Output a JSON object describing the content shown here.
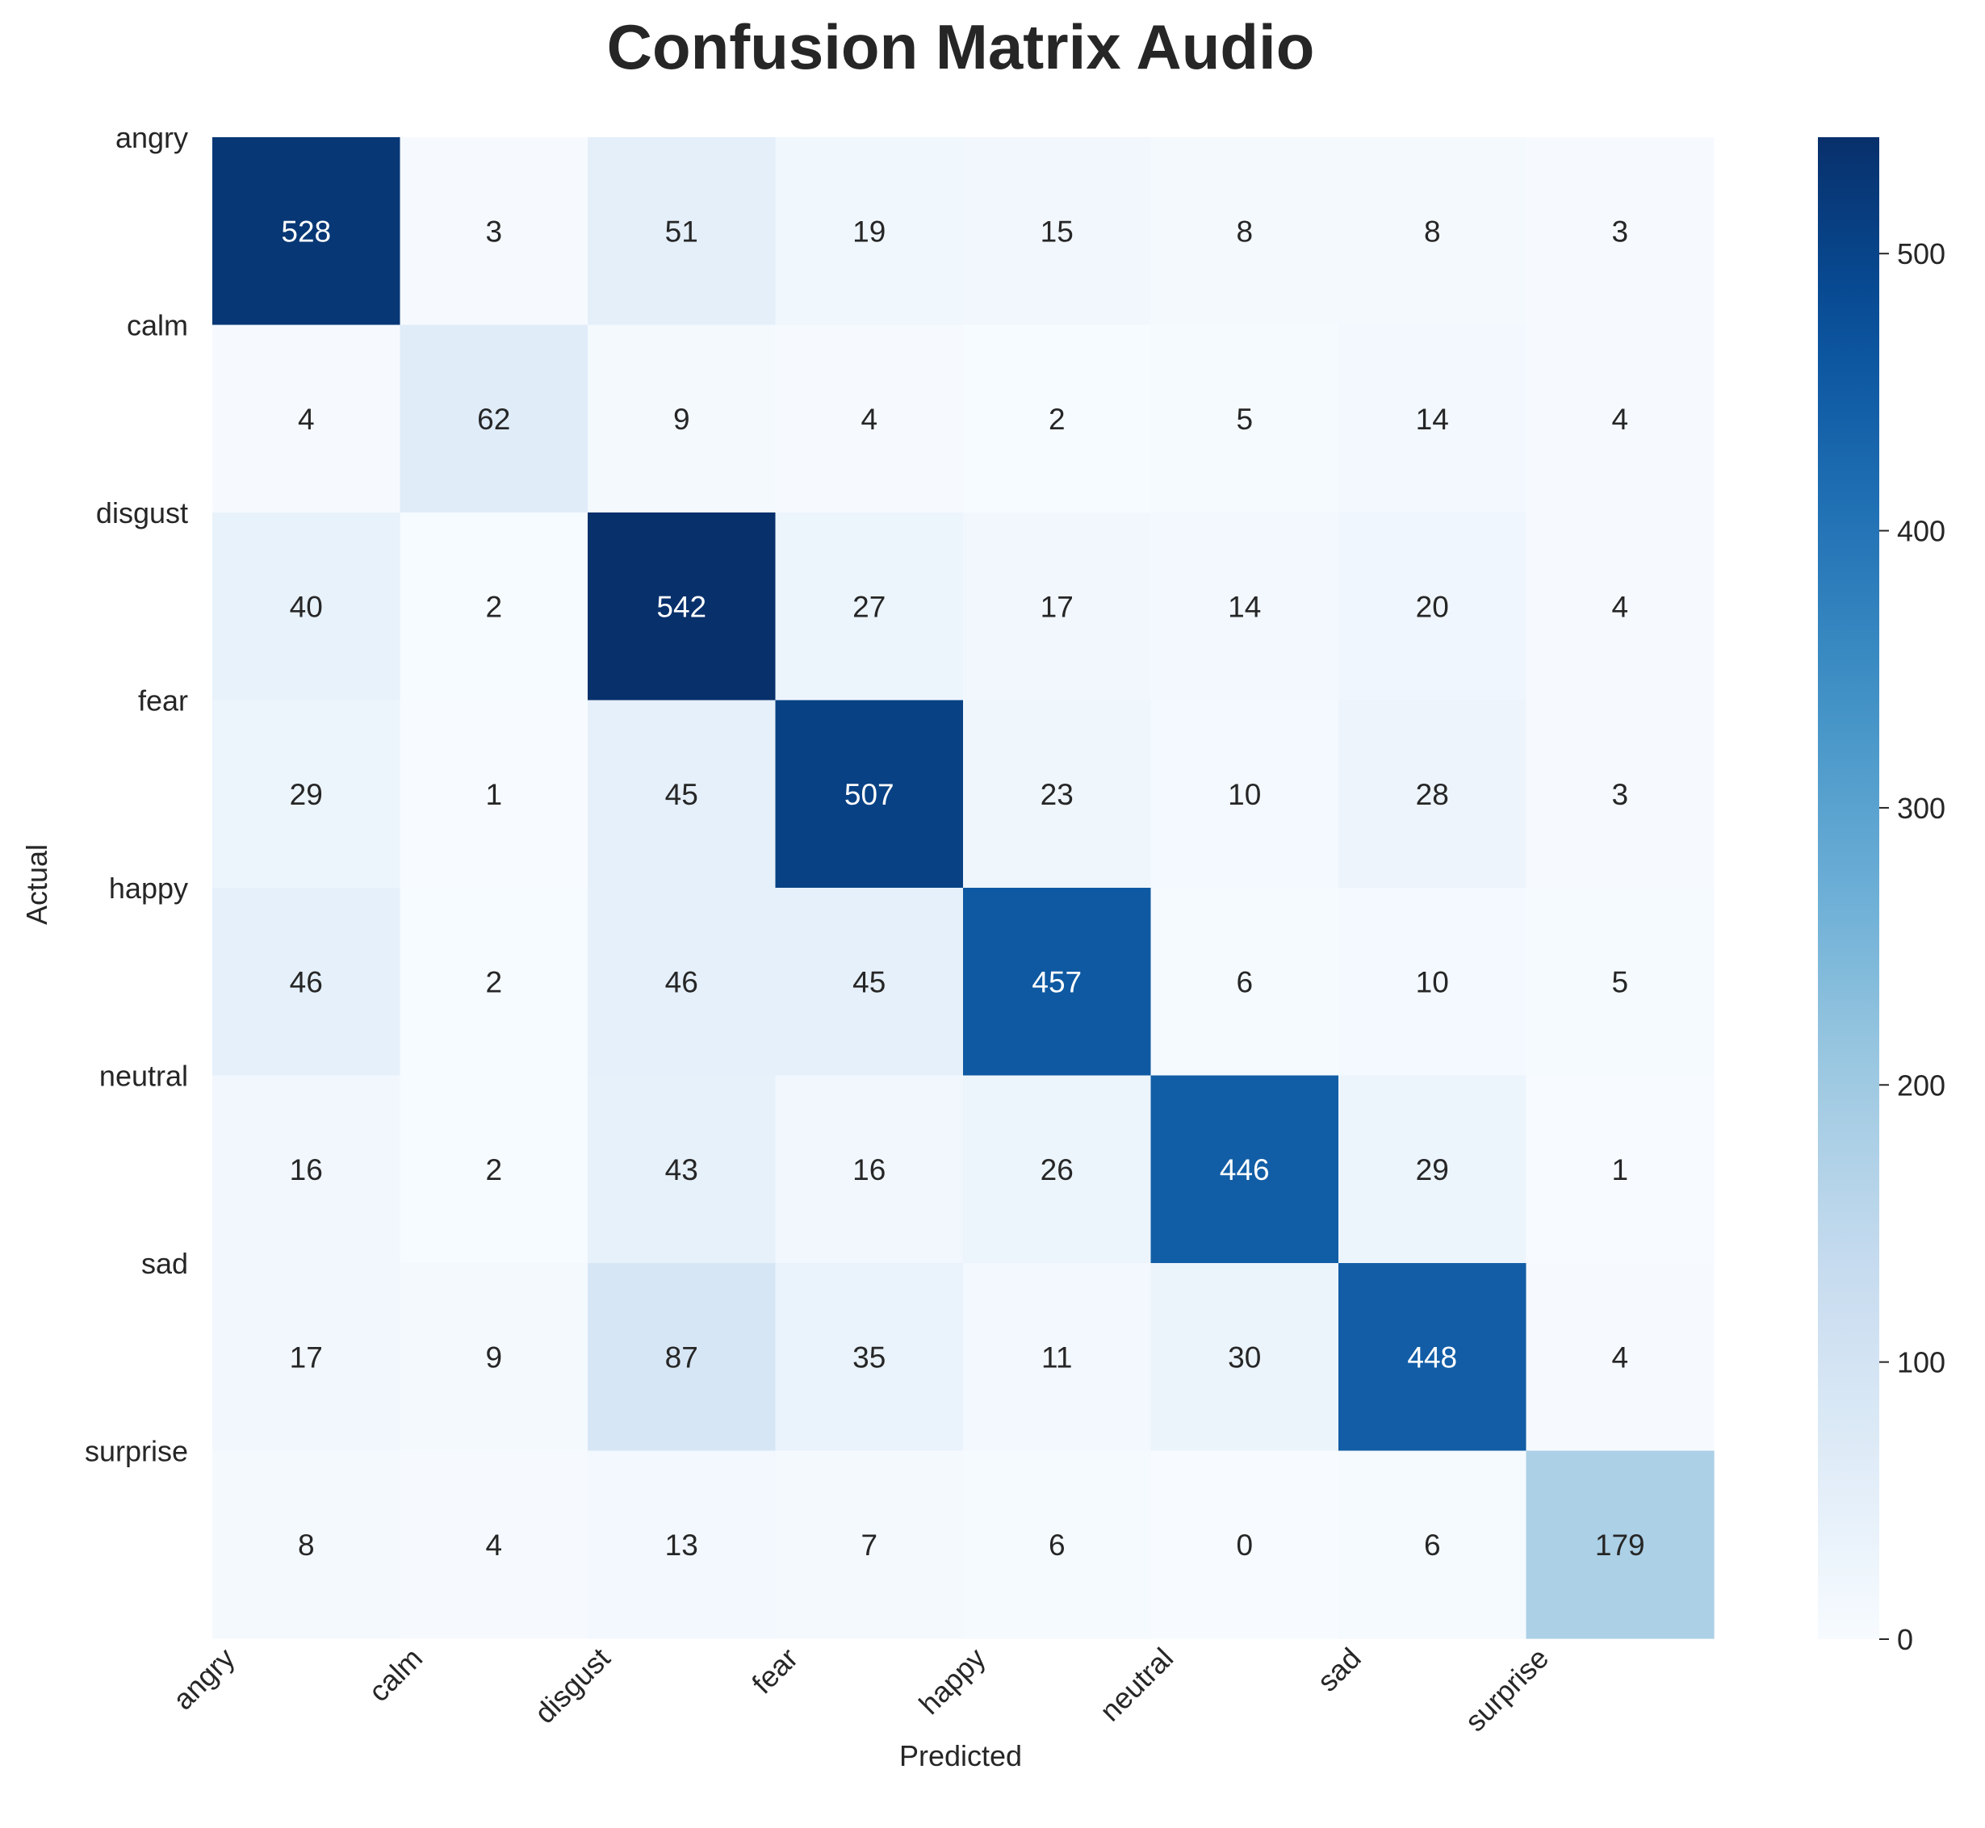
{
  "chart_data": {
    "type": "heatmap",
    "title": "Confusion Matrix Audio",
    "xlabel": "Predicted",
    "ylabel": "Actual",
    "x_categories": [
      "angry",
      "calm",
      "disgust",
      "fear",
      "happy",
      "neutral",
      "sad",
      "surprise"
    ],
    "y_categories": [
      "angry",
      "calm",
      "disgust",
      "fear",
      "happy",
      "neutral",
      "sad",
      "surprise"
    ],
    "matrix": [
      [
        528,
        3,
        51,
        19,
        15,
        8,
        8,
        3
      ],
      [
        4,
        62,
        9,
        4,
        2,
        5,
        14,
        4
      ],
      [
        40,
        2,
        542,
        27,
        17,
        14,
        20,
        4
      ],
      [
        29,
        1,
        45,
        507,
        23,
        10,
        28,
        3
      ],
      [
        46,
        2,
        46,
        45,
        457,
        6,
        10,
        5
      ],
      [
        16,
        2,
        43,
        16,
        26,
        446,
        29,
        1
      ],
      [
        17,
        9,
        87,
        35,
        11,
        30,
        448,
        4
      ],
      [
        8,
        4,
        13,
        7,
        6,
        0,
        6,
        179
      ]
    ],
    "colormap": "Blues",
    "color_range": [
      0,
      542
    ],
    "colorbar_ticks": [
      0,
      100,
      200,
      300,
      400,
      500
    ],
    "annotations": true,
    "grid": false,
    "colors": {
      "low": "#f7fbff",
      "high": "#08306b",
      "dark_text": "#262626",
      "light_text": "#ffffff"
    }
  }
}
